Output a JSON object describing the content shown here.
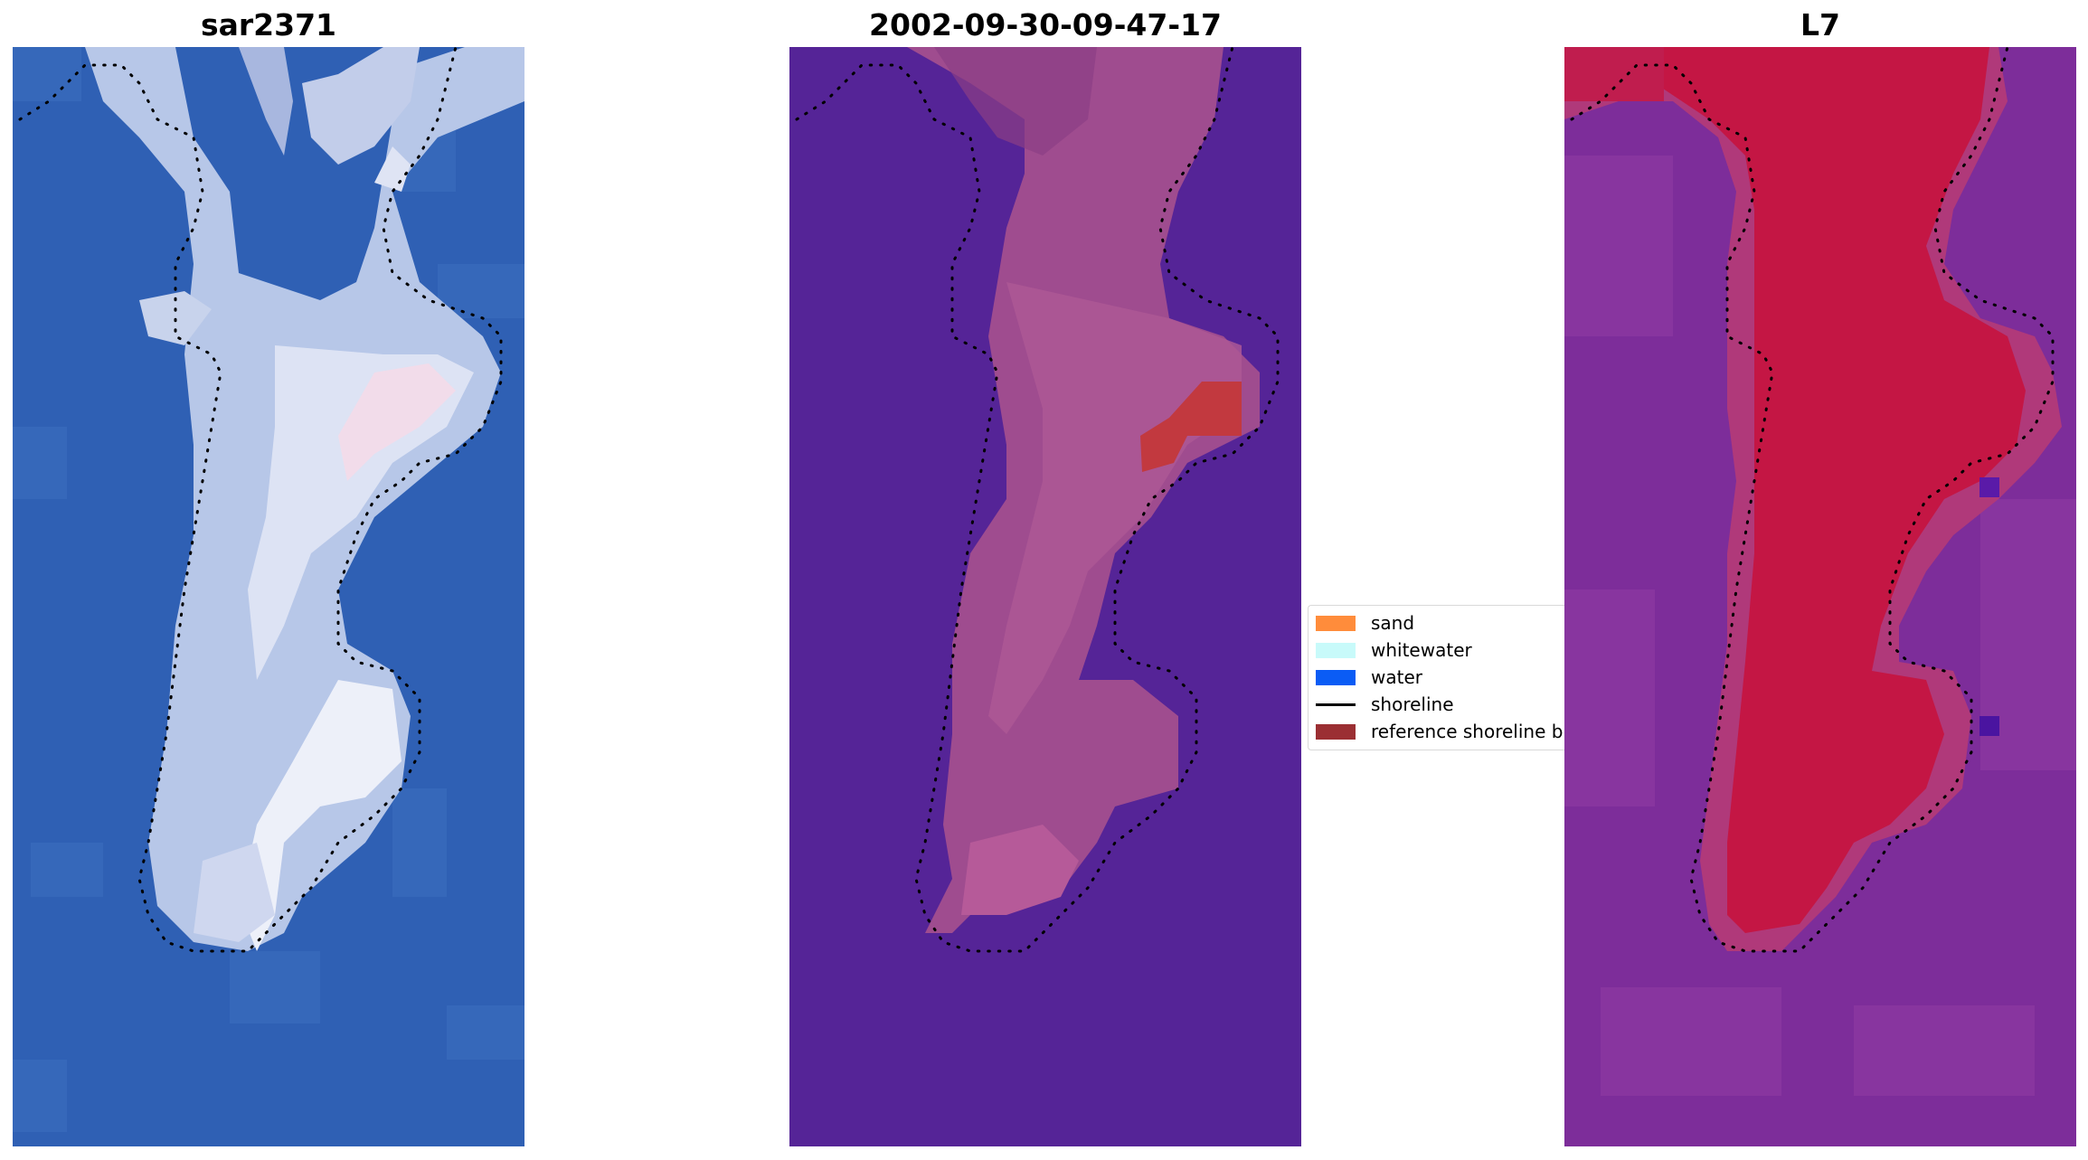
{
  "panels": [
    {
      "title": "sar2371"
    },
    {
      "title": "2002-09-30-09-47-17"
    },
    {
      "title": "L7"
    }
  ],
  "legend": {
    "items": [
      {
        "label": "sand",
        "color": "#ff8c3b",
        "kind": "patch"
      },
      {
        "label": "whitewater",
        "color": "#c8fafa",
        "kind": "patch"
      },
      {
        "label": "water",
        "color": "#0a5cf5",
        "kind": "patch"
      },
      {
        "label": "shoreline",
        "color": "#000000",
        "kind": "line"
      },
      {
        "label": "reference shoreline buffer",
        "color": "#9b2f33",
        "kind": "patch"
      }
    ]
  },
  "colors": {
    "rgb_water": "#2f60b4",
    "rgb_land": "#b7c7e8",
    "rgb_bright": "#f4f6fb",
    "class_water": "#552497",
    "class_land": "#9f4c8f",
    "class_buffer": "#c2393f",
    "index_water": "#7d2d9a",
    "index_land": "#c5133f"
  }
}
